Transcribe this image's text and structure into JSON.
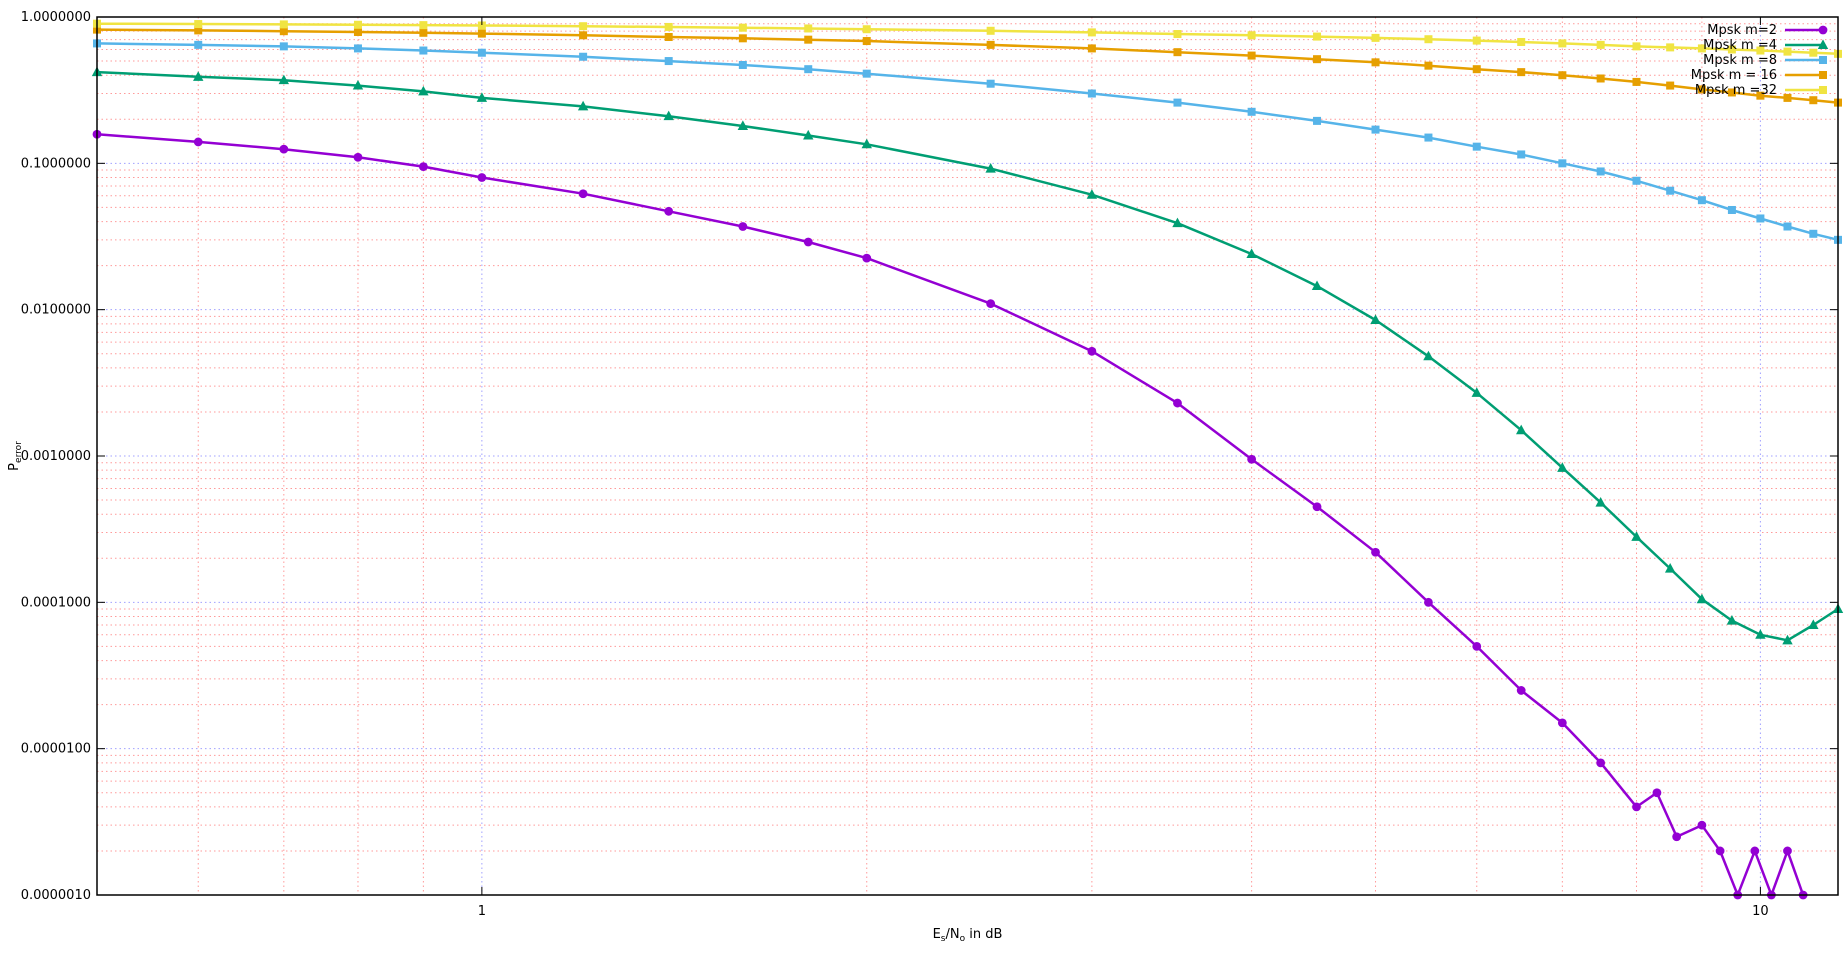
{
  "chart_data": {
    "type": "line",
    "title": "",
    "xlabel": {
      "main": "E",
      "sub1": "s",
      "mid": "/N",
      "sub2": "o",
      "tail": " in dB"
    },
    "ylabel": {
      "main": "P",
      "sub": "error"
    },
    "xscale": "log",
    "yscale": "log",
    "xlim": [
      0.5,
      11.5
    ],
    "ylim": [
      1e-06,
      1.0
    ],
    "x_ticks": [
      {
        "value": 1,
        "label": "1"
      },
      {
        "value": 10,
        "label": "10"
      }
    ],
    "y_ticks": [
      {
        "value": 1.0,
        "label": "1.0000000"
      },
      {
        "value": 0.1,
        "label": "0.1000000"
      },
      {
        "value": 0.01,
        "label": "0.0100000"
      },
      {
        "value": 0.001,
        "label": "0.0010000"
      },
      {
        "value": 0.0001,
        "label": "0.0001000"
      },
      {
        "value": 1e-05,
        "label": "0.0000100"
      },
      {
        "value": 1e-06,
        "label": "0.0000010"
      }
    ],
    "grid": true,
    "legend_position": "top-right",
    "series": [
      {
        "name": "Mpsk m=2",
        "color": "#9400d3",
        "marker": "circle",
        "x": [
          0.5,
          0.6,
          0.7,
          0.8,
          0.9,
          1.0,
          1.2,
          1.4,
          1.6,
          1.8,
          2.0,
          2.5,
          3.0,
          3.5,
          4.0,
          4.5,
          5.0,
          5.5,
          6.0,
          6.5,
          7.0,
          7.5,
          8.0,
          8.3,
          8.6,
          9.0,
          9.3,
          9.6,
          9.9,
          10.2,
          10.5,
          10.8
        ],
        "y": [
          0.158,
          0.14,
          0.125,
          0.11,
          0.095,
          0.08,
          0.062,
          0.047,
          0.037,
          0.029,
          0.0225,
          0.011,
          0.0052,
          0.0023,
          0.00095,
          0.00045,
          0.00022,
          0.0001,
          5e-05,
          2.5e-05,
          1.5e-05,
          8e-06,
          4e-06,
          5e-06,
          2.5e-06,
          3e-06,
          2e-06,
          1e-06,
          2e-06,
          1e-06,
          2e-06,
          1e-06
        ]
      },
      {
        "name": "Mpsk m =4",
        "color": "#009e73",
        "marker": "triangle",
        "x": [
          0.5,
          0.6,
          0.7,
          0.8,
          0.9,
          1.0,
          1.2,
          1.4,
          1.6,
          1.8,
          2.0,
          2.5,
          3.0,
          3.5,
          4.0,
          4.5,
          5.0,
          5.5,
          6.0,
          6.5,
          7.0,
          7.5,
          8.0,
          8.5,
          9.0,
          9.5,
          10.0,
          10.5,
          11.0,
          11.5
        ],
        "y": [
          0.42,
          0.39,
          0.37,
          0.34,
          0.31,
          0.28,
          0.245,
          0.21,
          0.18,
          0.155,
          0.135,
          0.092,
          0.061,
          0.039,
          0.024,
          0.0145,
          0.0085,
          0.0048,
          0.0027,
          0.0015,
          0.00083,
          0.00048,
          0.00028,
          0.00017,
          0.000105,
          7.5e-05,
          6e-05,
          5.5e-05,
          7e-05,
          9e-05
        ]
      },
      {
        "name": "Mpsk m =8",
        "color": "#56b4e9",
        "marker": "square",
        "x": [
          0.5,
          0.6,
          0.7,
          0.8,
          0.9,
          1.0,
          1.2,
          1.4,
          1.6,
          1.8,
          2.0,
          2.5,
          3.0,
          3.5,
          4.0,
          4.5,
          5.0,
          5.5,
          6.0,
          6.5,
          7.0,
          7.5,
          8.0,
          8.5,
          9.0,
          9.5,
          10.0,
          10.5,
          11.0,
          11.5
        ],
        "y": [
          0.66,
          0.645,
          0.63,
          0.61,
          0.59,
          0.57,
          0.535,
          0.5,
          0.47,
          0.44,
          0.41,
          0.35,
          0.3,
          0.26,
          0.225,
          0.195,
          0.17,
          0.15,
          0.13,
          0.115,
          0.1,
          0.088,
          0.076,
          0.065,
          0.056,
          0.048,
          0.042,
          0.037,
          0.033,
          0.03
        ]
      },
      {
        "name": "Mpsk m = 16",
        "color": "#e69f00",
        "marker": "square",
        "x": [
          0.5,
          0.6,
          0.7,
          0.8,
          0.9,
          1.0,
          1.2,
          1.4,
          1.6,
          1.8,
          2.0,
          2.5,
          3.0,
          3.5,
          4.0,
          4.5,
          5.0,
          5.5,
          6.0,
          6.5,
          7.0,
          7.5,
          8.0,
          8.5,
          9.0,
          9.5,
          10.0,
          10.5,
          11.0,
          11.5
        ],
        "y": [
          0.82,
          0.81,
          0.8,
          0.79,
          0.78,
          0.77,
          0.75,
          0.73,
          0.715,
          0.7,
          0.685,
          0.645,
          0.61,
          0.575,
          0.545,
          0.515,
          0.49,
          0.465,
          0.44,
          0.42,
          0.4,
          0.38,
          0.36,
          0.34,
          0.32,
          0.305,
          0.29,
          0.28,
          0.27,
          0.26
        ]
      },
      {
        "name": "Mpsk m =32",
        "color": "#f0e442",
        "marker": "square",
        "x": [
          0.5,
          0.6,
          0.7,
          0.8,
          0.9,
          1.0,
          1.2,
          1.4,
          1.6,
          1.8,
          2.0,
          2.5,
          3.0,
          3.5,
          4.0,
          4.5,
          5.0,
          5.5,
          6.0,
          6.5,
          7.0,
          7.5,
          8.0,
          8.5,
          9.0,
          9.5,
          10.0,
          10.5,
          11.0,
          11.5
        ],
        "y": [
          0.9,
          0.895,
          0.89,
          0.885,
          0.88,
          0.875,
          0.865,
          0.855,
          0.845,
          0.835,
          0.825,
          0.805,
          0.785,
          0.765,
          0.75,
          0.735,
          0.72,
          0.705,
          0.69,
          0.675,
          0.66,
          0.645,
          0.63,
          0.62,
          0.61,
          0.6,
          0.59,
          0.58,
          0.57,
          0.56
        ]
      }
    ]
  }
}
